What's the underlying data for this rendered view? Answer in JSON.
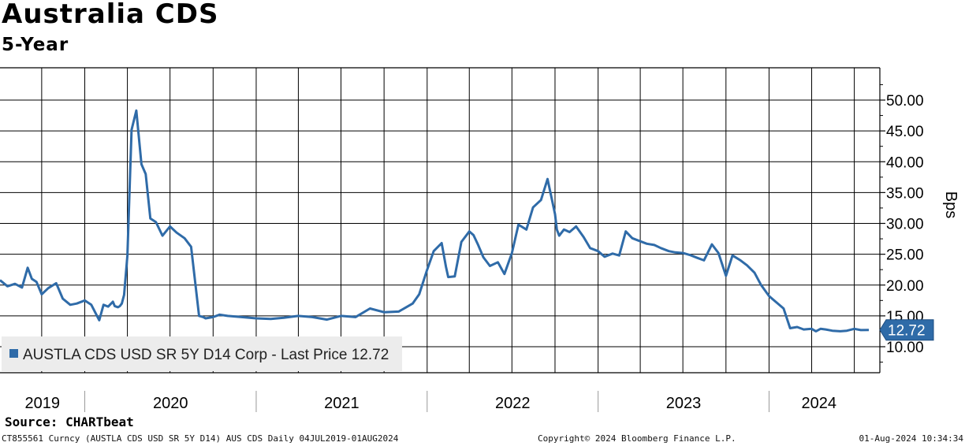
{
  "title": "Australia CDS",
  "subtitle": "5-Year",
  "source": "Source: CHARTbeat",
  "footer": {
    "left": "CT855561 Curncy (AUSTLA CDS USD SR 5Y D14) AUS CDS  Daily 04JUL2019-01AUG2024",
    "middle": "Copyright© 2024 Bloomberg Finance L.P.",
    "right": "01-Aug-2024 10:34:34"
  },
  "colors": {
    "line": "#2f6ba8",
    "grid": "#000000",
    "legend_bg": "#ececec"
  },
  "chart_data": {
    "type": "line",
    "ylabel": "Bps",
    "ylim": [
      6,
      55
    ],
    "yticks": [
      "10.00",
      "15.00",
      "20.00",
      "25.00",
      "30.00",
      "35.00",
      "40.00",
      "45.00",
      "50.00"
    ],
    "ytick_values": [
      10,
      15,
      20,
      25,
      30,
      35,
      40,
      45,
      50
    ],
    "xlim": [
      "2019-07-04",
      "2024-08-01"
    ],
    "x_year_labels": [
      "2019",
      "2020",
      "2021",
      "2022",
      "2023",
      "2024"
    ],
    "legend": "AUSTLA CDS USD SR 5Y D14 Corp - Last Price 12.72",
    "last_value_label": "12.72",
    "last_value": 12.72,
    "grid": true,
    "series": [
      {
        "name": "AUSTLA CDS USD SR 5Y D14 Corp",
        "x": [
          "2019-07-04",
          "2019-07-20",
          "2019-08-05",
          "2019-08-20",
          "2019-09-01",
          "2019-09-10",
          "2019-09-20",
          "2019-10-01",
          "2019-10-15",
          "2019-11-01",
          "2019-11-15",
          "2019-12-01",
          "2019-12-15",
          "2020-01-01",
          "2020-01-15",
          "2020-02-01",
          "2020-02-10",
          "2020-02-20",
          "2020-03-01",
          "2020-03-05",
          "2020-03-12",
          "2020-03-16",
          "2020-03-20",
          "2020-03-25",
          "2020-04-01",
          "2020-04-10",
          "2020-04-20",
          "2020-05-01",
          "2020-05-10",
          "2020-05-20",
          "2020-06-01",
          "2020-06-15",
          "2020-07-01",
          "2020-07-15",
          "2020-08-01",
          "2020-08-15",
          "2020-09-01",
          "2020-09-10",
          "2020-09-15",
          "2020-10-01",
          "2020-10-15",
          "2020-11-01",
          "2020-12-01",
          "2021-01-01",
          "2021-02-01",
          "2021-03-01",
          "2021-04-01",
          "2021-05-01",
          "2021-06-01",
          "2021-07-01",
          "2021-08-01",
          "2021-09-01",
          "2021-10-01",
          "2021-11-01",
          "2021-11-15",
          "2021-12-01",
          "2021-12-15",
          "2022-01-01",
          "2022-01-15",
          "2022-02-01",
          "2022-02-10",
          "2022-02-15",
          "2022-03-01",
          "2022-03-15",
          "2022-04-01",
          "2022-04-10",
          "2022-04-20",
          "2022-05-01",
          "2022-05-15",
          "2022-06-01",
          "2022-06-15",
          "2022-07-01",
          "2022-07-15",
          "2022-08-01",
          "2022-08-15",
          "2022-09-01",
          "2022-09-15",
          "2022-10-01",
          "2022-10-05",
          "2022-10-10",
          "2022-10-20",
          "2022-11-01",
          "2022-11-15",
          "2022-12-01",
          "2022-12-15",
          "2023-01-01",
          "2023-01-15",
          "2023-02-01",
          "2023-02-15",
          "2023-03-01",
          "2023-03-15",
          "2023-04-01",
          "2023-04-15",
          "2023-05-01",
          "2023-05-15",
          "2023-06-01",
          "2023-06-15",
          "2023-07-01",
          "2023-07-15",
          "2023-08-01",
          "2023-08-15",
          "2023-09-01",
          "2023-09-15",
          "2023-10-01",
          "2023-10-15",
          "2023-11-01",
          "2023-11-15",
          "2023-12-01",
          "2023-12-15",
          "2024-01-01",
          "2024-01-15",
          "2024-02-01",
          "2024-02-15",
          "2024-03-01",
          "2024-03-15",
          "2024-04-01",
          "2024-04-10",
          "2024-04-20",
          "2024-05-01",
          "2024-05-15",
          "2024-06-01",
          "2024-06-15",
          "2024-07-01",
          "2024-07-15",
          "2024-08-01"
        ],
        "values": [
          20.8,
          19.8,
          20.2,
          19.6,
          22.8,
          21.0,
          20.5,
          18.5,
          19.5,
          20.3,
          17.8,
          16.8,
          17.0,
          17.5,
          16.8,
          14.3,
          16.8,
          16.5,
          17.3,
          16.6,
          16.4,
          16.6,
          17.0,
          18.4,
          24.8,
          45.2,
          48.3,
          39.6,
          38.0,
          30.8,
          30.2,
          28.0,
          29.5,
          28.5,
          27.6,
          26.2,
          15.0,
          14.8,
          14.6,
          14.8,
          15.2,
          15.0,
          14.8,
          14.6,
          14.5,
          14.7,
          15.0,
          14.8,
          14.4,
          15.0,
          14.8,
          16.2,
          15.6,
          15.7,
          16.3,
          17.0,
          18.5,
          22.5,
          25.5,
          26.8,
          23.0,
          21.3,
          21.4,
          27.0,
          28.7,
          28.1,
          26.5,
          24.5,
          23.1,
          23.7,
          21.8,
          25.2,
          29.8,
          29.0,
          32.6,
          33.8,
          37.2,
          31.5,
          29.0,
          28.0,
          29.0,
          28.6,
          29.5,
          27.8,
          26.0,
          25.5,
          24.6,
          25.1,
          24.8,
          28.7,
          27.6,
          27.1,
          26.7,
          26.5,
          26.0,
          25.5,
          25.3,
          25.2,
          24.9,
          24.4,
          24.0,
          26.6,
          25.2,
          21.5,
          24.8,
          24.0,
          23.2,
          22.0,
          20.0,
          18.2,
          17.3,
          16.2,
          13.0,
          13.2,
          12.8,
          12.9,
          12.5,
          12.9,
          12.8,
          12.6,
          12.5,
          12.6,
          12.9,
          12.7,
          12.72
        ]
      }
    ]
  }
}
